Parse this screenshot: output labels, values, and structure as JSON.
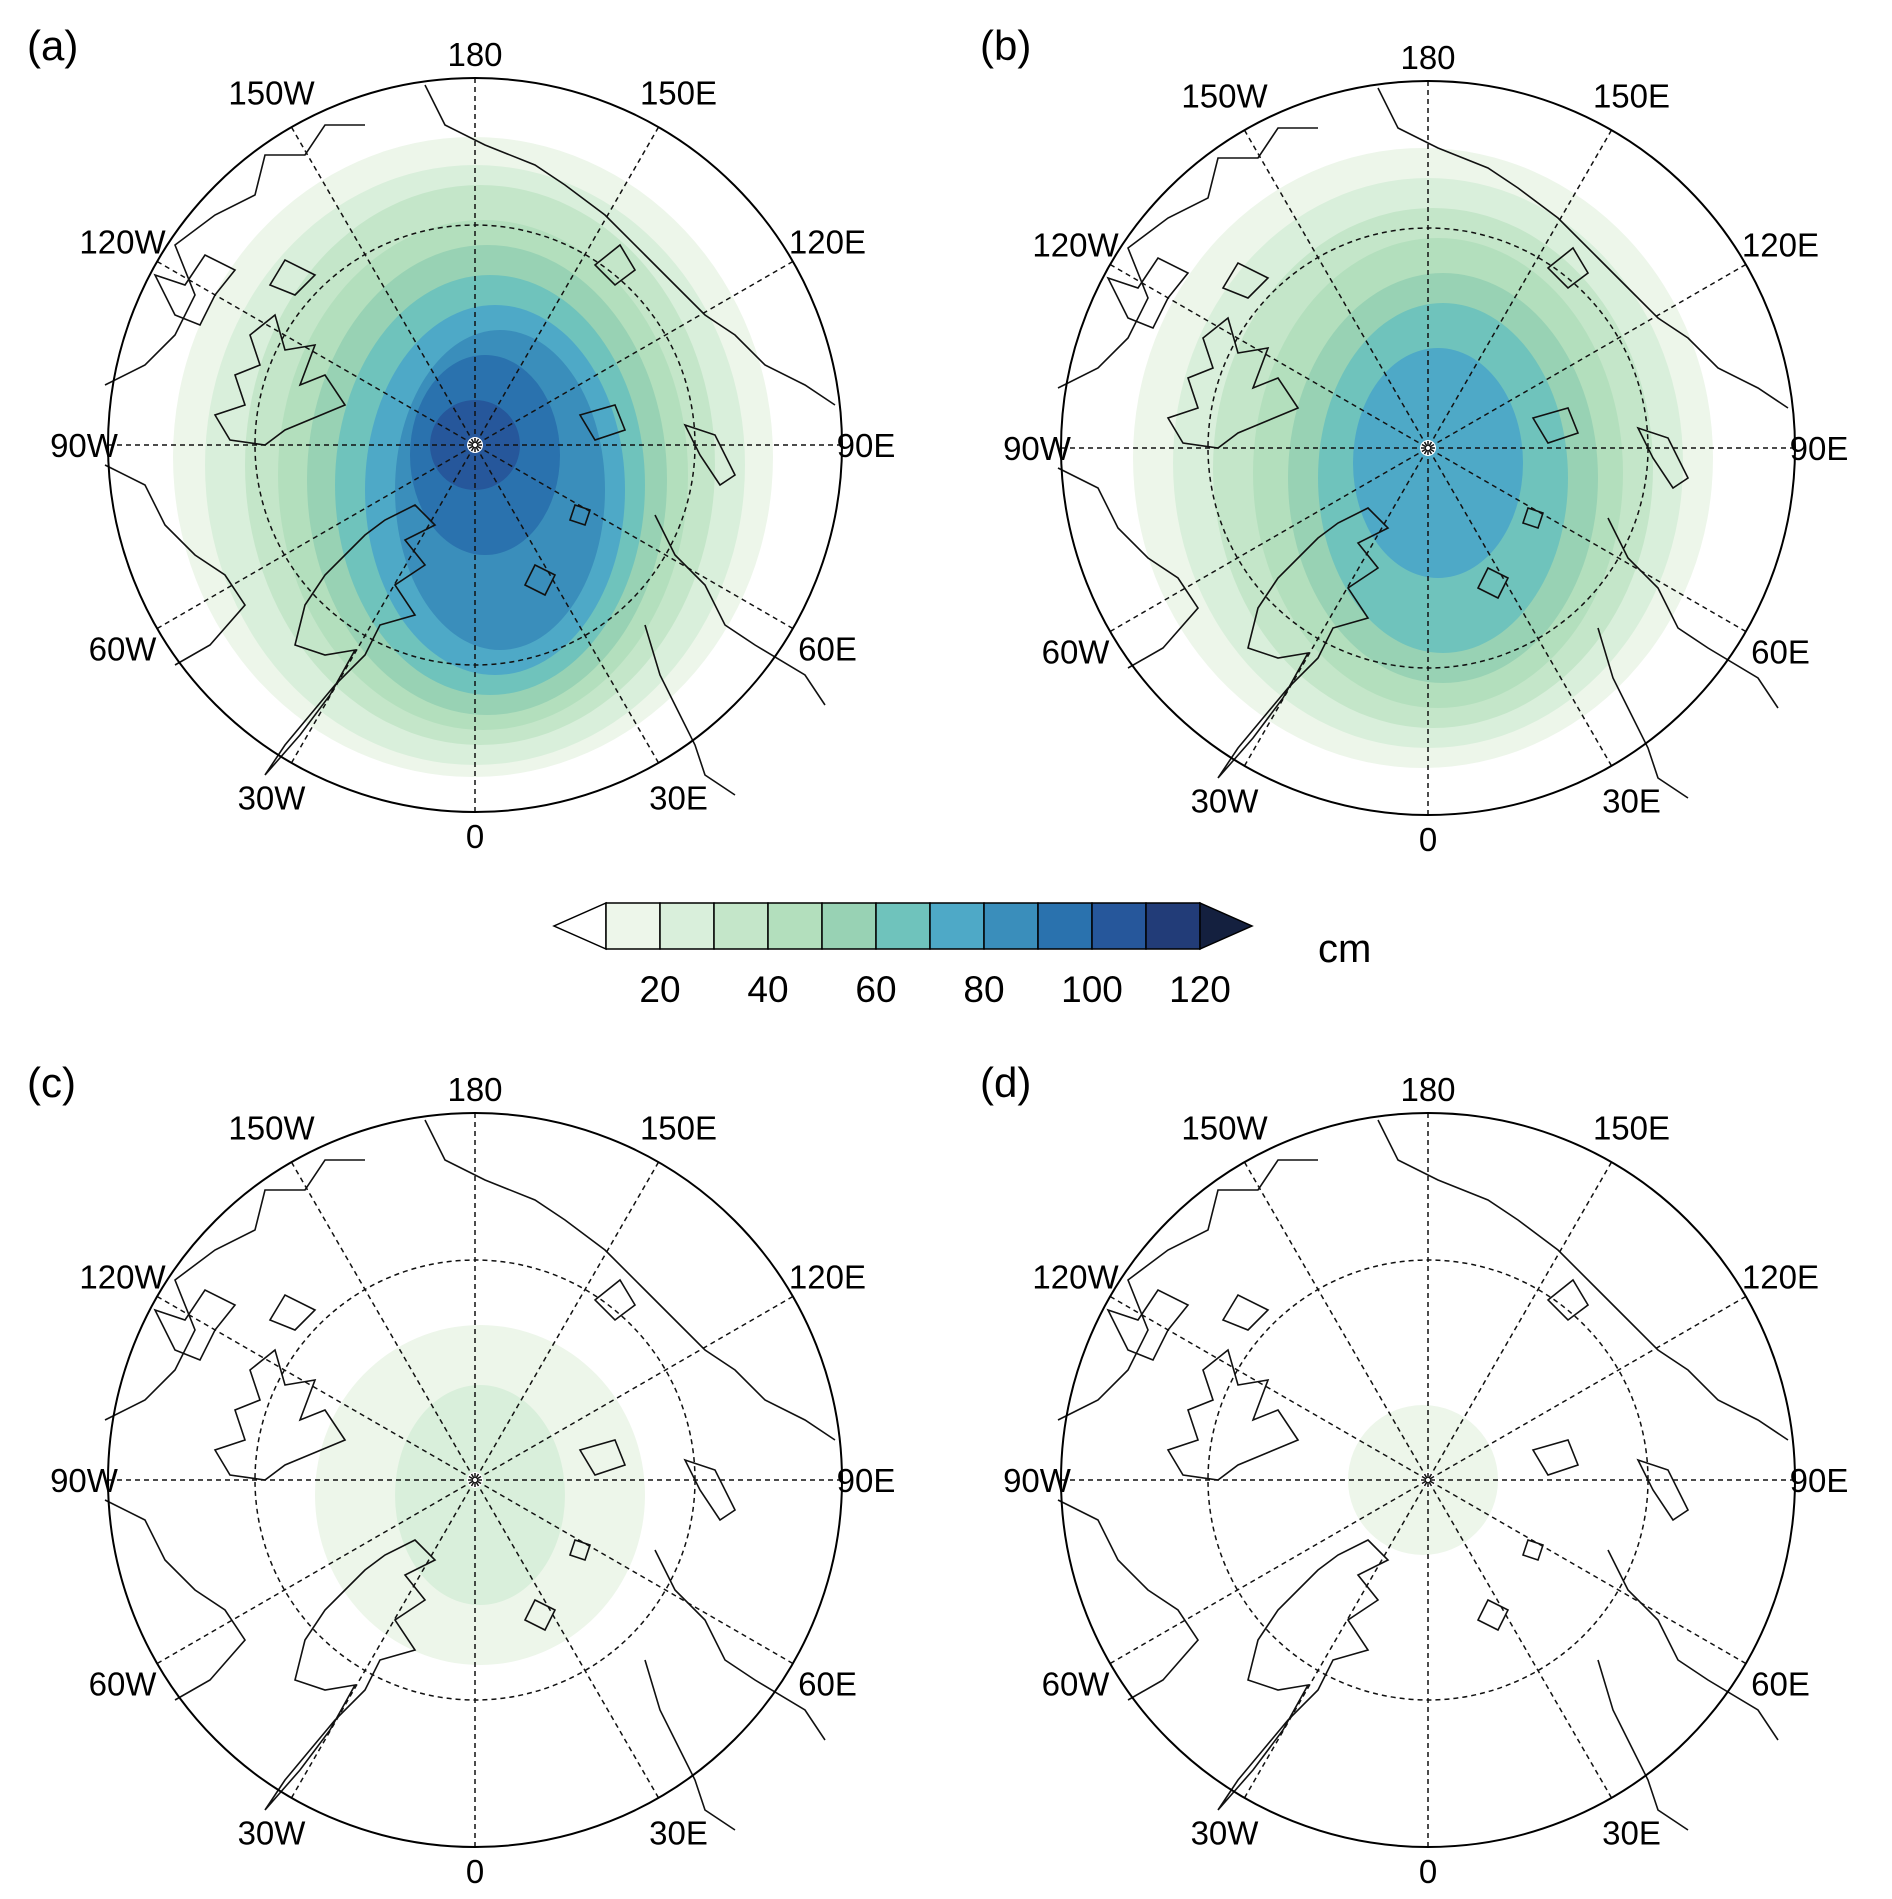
{
  "panels": [
    {
      "label": "(a)",
      "fields": [
        {
          "level": 1,
          "center": [
            -2,
            12
          ],
          "rx": 300,
          "ry": 320
        },
        {
          "level": 2,
          "center": [
            0,
            20
          ],
          "rx": 270,
          "ry": 300
        },
        {
          "level": 3,
          "center": [
            5,
            20
          ],
          "rx": 235,
          "ry": 280
        },
        {
          "level": 4,
          "center": [
            8,
            30
          ],
          "rx": 205,
          "ry": 255
        },
        {
          "level": 5,
          "center": [
            12,
            35
          ],
          "rx": 180,
          "ry": 235
        },
        {
          "level": 6,
          "center": [
            15,
            40
          ],
          "rx": 155,
          "ry": 210
        },
        {
          "level": 7,
          "center": [
            20,
            45
          ],
          "rx": 130,
          "ry": 185
        },
        {
          "level": 8,
          "center": [
            25,
            45
          ],
          "rx": 105,
          "ry": 160
        },
        {
          "level": 9,
          "center": [
            10,
            10
          ],
          "rx": 75,
          "ry": 100
        },
        {
          "level": 10,
          "center": [
            0,
            0
          ],
          "rx": 45,
          "ry": 45
        }
      ]
    },
    {
      "label": "(b)",
      "fields": [
        {
          "level": 1,
          "center": [
            -5,
            10
          ],
          "rx": 290,
          "ry": 310
        },
        {
          "level": 2,
          "center": [
            0,
            15
          ],
          "rx": 255,
          "ry": 285
        },
        {
          "level": 3,
          "center": [
            5,
            20
          ],
          "rx": 220,
          "ry": 260
        },
        {
          "level": 4,
          "center": [
            10,
            25
          ],
          "rx": 185,
          "ry": 235
        },
        {
          "level": 5,
          "center": [
            15,
            30
          ],
          "rx": 155,
          "ry": 205
        },
        {
          "level": 6,
          "center": [
            15,
            30
          ],
          "rx": 125,
          "ry": 175
        },
        {
          "level": 7,
          "center": [
            10,
            15
          ],
          "rx": 85,
          "ry": 115
        }
      ]
    },
    {
      "label": "(c)",
      "fields": [
        {
          "level": 1,
          "center": [
            5,
            15
          ],
          "rx": 165,
          "ry": 170
        },
        {
          "level": 2,
          "center": [
            5,
            15
          ],
          "rx": 85,
          "ry": 110
        }
      ]
    },
    {
      "label": "(d)",
      "fields": [
        {
          "level": 1,
          "center": [
            -5,
            0
          ],
          "rx": 75,
          "ry": 75
        }
      ]
    }
  ],
  "longitude_labels": {
    "top": "180",
    "top_right": "150E",
    "upper_right": "120E",
    "right": "90E",
    "lower_right": "60E",
    "bottom_right": "30E",
    "bottom": "0",
    "bottom_left": "30W",
    "lower_left": "60W",
    "left": "90W",
    "upper_left": "120W",
    "top_left": "150W"
  },
  "colorbar": {
    "unit": "cm",
    "tick_labels": [
      "20",
      "40",
      "60",
      "80",
      "100",
      "120"
    ],
    "tick_values": [
      20,
      40,
      60,
      80,
      100,
      120
    ],
    "levels": [
      10,
      20,
      30,
      40,
      50,
      60,
      70,
      80,
      90,
      100,
      110,
      120
    ],
    "colors": [
      "#ffffff",
      "#edf6ea",
      "#d9efdb",
      "#c4e6c9",
      "#b3dfbd",
      "#98d2b4",
      "#6fc3bc",
      "#4ea9c7",
      "#3a8ebb",
      "#2a72ae",
      "#26579b",
      "#223c78",
      "#14203f"
    ]
  },
  "map_style": {
    "coast_color": "#111111",
    "grid_color": "#111111",
    "boundary_color": "#000000"
  }
}
